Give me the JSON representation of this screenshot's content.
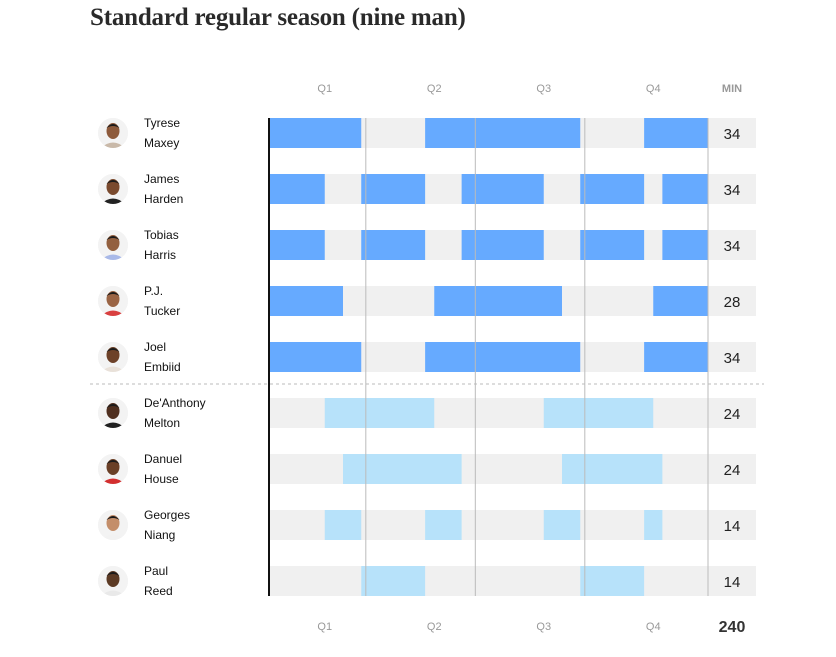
{
  "title": "Standard regular season (nine man)",
  "chart_data": {
    "type": "gantt",
    "quarters": [
      "Q1",
      "Q2",
      "Q3",
      "Q4"
    ],
    "min_header": "MIN",
    "total_minutes": "240",
    "game_minutes": 48,
    "colors": {
      "starter": "#66aaff",
      "bench": "#b7e2fa",
      "track": "#f0f0f0",
      "grid": "#bbbbbb"
    },
    "players": [
      {
        "first": "Tyrese",
        "last": "Maxey",
        "group": "starter",
        "minutes": 34,
        "segments": [
          [
            0,
            10
          ],
          [
            17,
            34
          ],
          [
            41,
            48
          ]
        ]
      },
      {
        "first": "James",
        "last": "Harden",
        "group": "starter",
        "minutes": 34,
        "segments": [
          [
            0,
            6
          ],
          [
            10,
            17
          ],
          [
            21,
            30
          ],
          [
            34,
            41
          ],
          [
            43,
            48
          ]
        ]
      },
      {
        "first": "Tobias",
        "last": "Harris",
        "group": "starter",
        "minutes": 34,
        "segments": [
          [
            0,
            6
          ],
          [
            10,
            17
          ],
          [
            21,
            30
          ],
          [
            34,
            41
          ],
          [
            43,
            48
          ]
        ]
      },
      {
        "first": "P.J.",
        "last": "Tucker",
        "group": "starter",
        "minutes": 28,
        "segments": [
          [
            0,
            8
          ],
          [
            18,
            32
          ],
          [
            42,
            48
          ]
        ]
      },
      {
        "first": "Joel",
        "last": "Embiid",
        "group": "starter",
        "minutes": 34,
        "segments": [
          [
            0,
            10
          ],
          [
            17,
            34
          ],
          [
            41,
            48
          ]
        ]
      },
      {
        "first": "De'Anthony",
        "last": "Melton",
        "group": "bench",
        "minutes": 24,
        "segments": [
          [
            6,
            18
          ],
          [
            30,
            42
          ]
        ]
      },
      {
        "first": "Danuel",
        "last": "House",
        "group": "bench",
        "minutes": 24,
        "segments": [
          [
            8,
            21
          ],
          [
            32,
            43
          ]
        ]
      },
      {
        "first": "Georges",
        "last": "Niang",
        "group": "bench",
        "minutes": 14,
        "segments": [
          [
            6,
            10
          ],
          [
            17,
            21
          ],
          [
            30,
            34
          ],
          [
            41,
            43
          ]
        ]
      },
      {
        "first": "Paul",
        "last": "Reed",
        "group": "bench",
        "minutes": 14,
        "segments": [
          [
            10,
            17
          ],
          [
            34,
            41
          ]
        ]
      }
    ]
  }
}
